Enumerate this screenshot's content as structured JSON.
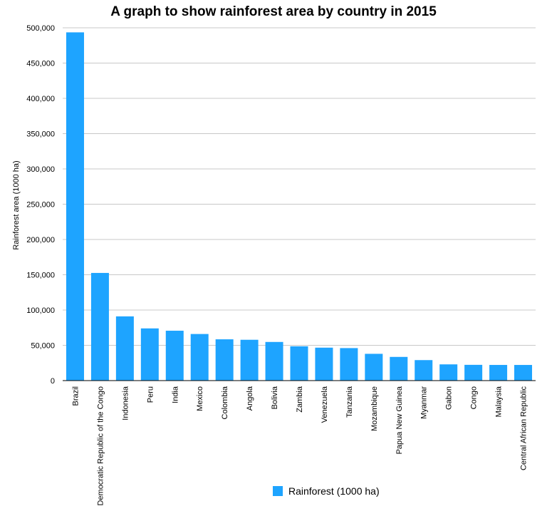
{
  "colors": {
    "bar": "#1ea4ff",
    "grid": "#c8c8c8",
    "axis": "#000000"
  },
  "chart_data": {
    "type": "bar",
    "title": "A graph to show rainforest area by country in 2015",
    "xlabel": "",
    "ylabel": "Rainforest area (1000 ha)",
    "ylim": [
      0,
      500000
    ],
    "yticks": [
      0,
      50000,
      100000,
      150000,
      200000,
      250000,
      300000,
      350000,
      400000,
      450000,
      500000
    ],
    "ytick_labels": [
      "0",
      "50,000",
      "100,000",
      "150,000",
      "200,000",
      "250,000",
      "300,000",
      "350,000",
      "400,000",
      "450,000",
      "500,000"
    ],
    "grid": true,
    "legend_position": "bottom",
    "categories": [
      "Brazil",
      "Democratic Republic of the Congo",
      "Indonesia",
      "Peru",
      "India",
      "Mexico",
      "Colombia",
      "Angola",
      "Bolivia",
      "Zambia",
      "Venezuela",
      "Tanzania",
      "Mozambique",
      "Papua New Guinea",
      "Myanmar",
      "Gabon",
      "Congo",
      "Malaysia",
      "Central African Republic"
    ],
    "series": [
      {
        "name": "Rainforest (1000 ha)",
        "values": [
          493538,
          152578,
          91010,
          73973,
          70682,
          66040,
          58502,
          57856,
          54764,
          48635,
          46683,
          46060,
          37940,
          33559,
          29041,
          23000,
          22334,
          22195,
          22170
        ]
      }
    ]
  }
}
